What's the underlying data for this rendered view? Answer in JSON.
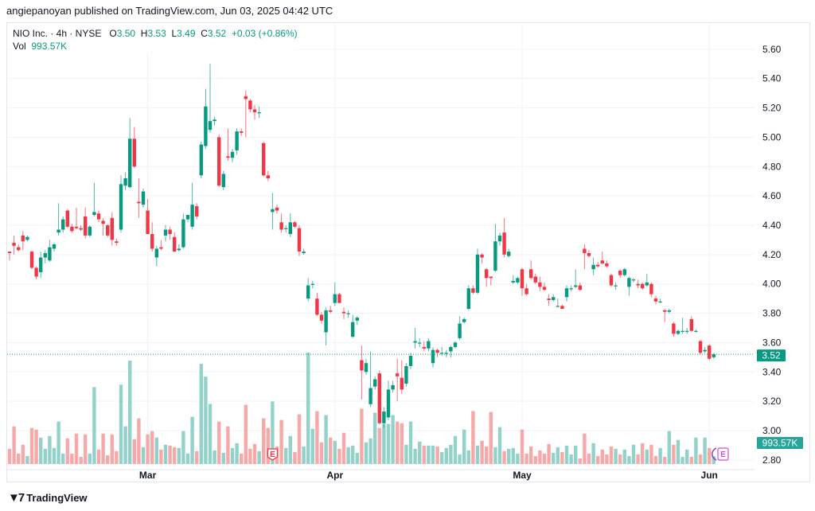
{
  "publisher_line": "angiepanoyan published on TradingView.com, Jun 03, 2025 04:42 UTC",
  "legend": {
    "symbol": "NIO Inc. · 4h · NYSE",
    "o_label": "O",
    "o": "3.50",
    "h_label": "H",
    "h": "3.53",
    "l_label": "L",
    "l": "3.49",
    "c_label": "C",
    "c": "3.52",
    "change": "+0.03 (+0.86%)",
    "vol_label": "Vol",
    "vol": "993.57K"
  },
  "footer": {
    "brand": "TradingView",
    "logo_icon": "tradingview-logo-icon"
  },
  "colors": {
    "up": "#089981",
    "down": "#F23645",
    "vol_up": "#92d2ca",
    "vol_down": "#f7a8a8",
    "grid": "#f0f3fa",
    "earnings_past": "#F23645",
    "earnings_future": "#d24cd9"
  },
  "chart_data": {
    "type": "candlestick",
    "title": "NIO Inc. · 4h · NYSE",
    "ylim": [
      2.8,
      5.65
    ],
    "y_ticks": [
      "5.60",
      "5.40",
      "5.20",
      "5.00",
      "4.80",
      "4.60",
      "4.40",
      "4.20",
      "4.00",
      "3.80",
      "3.60",
      "3.40",
      "3.20",
      "3.00",
      "2.80"
    ],
    "x_ticks": [
      {
        "label": "Mar",
        "index": 31
      },
      {
        "label": "Apr",
        "index": 73
      },
      {
        "label": "May",
        "index": 115
      },
      {
        "label": "Jun",
        "index": 157
      }
    ],
    "last_price": "3.52",
    "last_price_value": 3.52,
    "volume_label": "993.57K",
    "volume_unit": "M",
    "earnings_markers": [
      {
        "label": "E",
        "index": 59,
        "state": "past"
      },
      {
        "label": "E",
        "index": 160,
        "state": "upcoming"
      }
    ],
    "candles_ohlc": [
      [
        4.22,
        4.22,
        4.16,
        4.21
      ],
      [
        4.28,
        4.33,
        4.2,
        4.26
      ],
      [
        4.25,
        4.27,
        4.22,
        4.23
      ],
      [
        4.33,
        4.36,
        4.23,
        4.29
      ],
      [
        4.3,
        4.33,
        4.29,
        4.32
      ],
      [
        4.22,
        4.23,
        4.1,
        4.11
      ],
      [
        4.11,
        4.12,
        4.03,
        4.05
      ],
      [
        4.08,
        4.22,
        4.04,
        4.18
      ],
      [
        4.18,
        4.23,
        4.14,
        4.21
      ],
      [
        4.16,
        4.3,
        4.15,
        4.25
      ],
      [
        4.24,
        4.28,
        4.22,
        4.27
      ],
      [
        4.35,
        4.55,
        4.33,
        4.37
      ],
      [
        4.37,
        4.46,
        4.35,
        4.44
      ],
      [
        4.5,
        4.51,
        4.38,
        4.39
      ],
      [
        4.39,
        4.41,
        4.35,
        4.36
      ],
      [
        4.39,
        4.52,
        4.37,
        4.38
      ],
      [
        4.38,
        4.4,
        4.36,
        4.37
      ],
      [
        4.46,
        4.52,
        4.31,
        4.33
      ],
      [
        4.33,
        4.4,
        4.32,
        4.39
      ],
      [
        4.47,
        4.69,
        4.46,
        4.49
      ],
      [
        4.48,
        4.5,
        4.42,
        4.44
      ],
      [
        4.43,
        4.45,
        4.33,
        4.41
      ],
      [
        4.4,
        4.41,
        4.32,
        4.33
      ],
      [
        4.45,
        4.49,
        4.26,
        4.3
      ],
      [
        4.29,
        4.31,
        4.26,
        4.28
      ],
      [
        4.37,
        4.74,
        4.35,
        4.68
      ],
      [
        4.67,
        4.76,
        4.64,
        4.72
      ],
      [
        4.66,
        5.13,
        4.65,
        4.99
      ],
      [
        4.99,
        5.07,
        4.79,
        4.8
      ],
      [
        4.56,
        4.72,
        4.45,
        4.55
      ],
      [
        4.54,
        4.65,
        4.52,
        4.63
      ],
      [
        4.5,
        4.58,
        4.34,
        4.34
      ],
      [
        4.34,
        4.42,
        4.22,
        4.24
      ],
      [
        4.18,
        4.26,
        4.12,
        4.24
      ],
      [
        4.25,
        4.3,
        4.23,
        4.24
      ],
      [
        4.33,
        4.4,
        4.29,
        4.37
      ],
      [
        4.37,
        4.39,
        4.3,
        4.34
      ],
      [
        4.32,
        4.35,
        4.22,
        4.22
      ],
      [
        4.23,
        4.27,
        4.22,
        4.24
      ],
      [
        4.25,
        4.48,
        4.24,
        4.44
      ],
      [
        4.44,
        4.47,
        4.42,
        4.47
      ],
      [
        4.39,
        4.69,
        4.37,
        4.54
      ],
      [
        4.53,
        4.55,
        4.44,
        4.46
      ],
      [
        4.74,
        4.97,
        4.72,
        4.95
      ],
      [
        4.94,
        5.33,
        4.92,
        5.21
      ],
      [
        5.05,
        5.5,
        5.03,
        5.11
      ],
      [
        5.11,
        5.14,
        5.08,
        5.12
      ],
      [
        5.0,
        5.02,
        4.66,
        4.67
      ],
      [
        4.66,
        4.77,
        4.64,
        4.75
      ],
      [
        4.87,
        5.06,
        4.84,
        4.86
      ],
      [
        4.86,
        4.92,
        4.83,
        4.9
      ],
      [
        4.91,
        5.06,
        4.88,
        5.04
      ],
      [
        5.04,
        5.06,
        5.01,
        5.03
      ],
      [
        5.28,
        5.32,
        5.0,
        5.26
      ],
      [
        5.25,
        5.26,
        5.17,
        5.19
      ],
      [
        5.19,
        5.22,
        5.12,
        5.17
      ],
      [
        5.17,
        5.21,
        5.13,
        5.17
      ],
      [
        4.96,
        4.97,
        4.73,
        4.74
      ],
      [
        4.74,
        4.77,
        4.7,
        4.72
      ],
      [
        4.49,
        4.62,
        4.37,
        4.51
      ],
      [
        4.52,
        4.54,
        4.48,
        4.5
      ],
      [
        4.42,
        4.48,
        4.35,
        4.37
      ],
      [
        4.38,
        4.4,
        4.35,
        4.38
      ],
      [
        4.34,
        4.48,
        4.32,
        4.42
      ],
      [
        4.42,
        4.43,
        4.38,
        4.39
      ],
      [
        4.38,
        4.4,
        4.19,
        4.22
      ],
      [
        4.21,
        4.24,
        4.2,
        4.22
      ],
      [
        3.9,
        4.04,
        3.88,
        3.99
      ],
      [
        4.0,
        4.02,
        3.97,
        4.0
      ],
      [
        3.9,
        3.94,
        3.78,
        3.79
      ],
      [
        3.79,
        3.81,
        3.73,
        3.75
      ],
      [
        3.67,
        3.84,
        3.58,
        3.82
      ],
      [
        3.82,
        3.85,
        3.8,
        3.81
      ],
      [
        3.87,
        4.01,
        3.85,
        3.93
      ],
      [
        3.93,
        3.94,
        3.87,
        3.87
      ],
      [
        3.81,
        3.84,
        3.76,
        3.8
      ],
      [
        3.8,
        3.82,
        3.77,
        3.8
      ],
      [
        3.64,
        3.79,
        3.63,
        3.74
      ],
      [
        3.75,
        3.78,
        3.72,
        3.77
      ],
      [
        3.48,
        3.58,
        3.21,
        3.41
      ],
      [
        3.4,
        3.49,
        3.38,
        3.46
      ],
      [
        3.18,
        3.54,
        3.16,
        3.29
      ],
      [
        3.3,
        3.37,
        3.28,
        3.35
      ],
      [
        3.39,
        3.41,
        3.04,
        3.05
      ],
      [
        3.05,
        3.16,
        3.02,
        3.13
      ],
      [
        3.09,
        3.34,
        3.07,
        3.28
      ],
      [
        3.28,
        3.34,
        3.26,
        3.31
      ],
      [
        3.39,
        3.49,
        3.2,
        3.37
      ],
      [
        3.36,
        3.48,
        3.25,
        3.28
      ],
      [
        3.32,
        3.46,
        3.3,
        3.44
      ],
      [
        3.44,
        3.53,
        3.42,
        3.51
      ],
      [
        3.6,
        3.7,
        3.56,
        3.61
      ],
      [
        3.6,
        3.63,
        3.57,
        3.6
      ],
      [
        3.57,
        3.61,
        3.54,
        3.56
      ],
      [
        3.56,
        3.63,
        3.54,
        3.61
      ],
      [
        3.46,
        3.57,
        3.43,
        3.55
      ],
      [
        3.55,
        3.56,
        3.5,
        3.53
      ],
      [
        3.53,
        3.57,
        3.51,
        3.53
      ],
      [
        3.53,
        3.55,
        3.5,
        3.53
      ],
      [
        3.54,
        3.58,
        3.5,
        3.57
      ],
      [
        3.57,
        3.61,
        3.56,
        3.6
      ],
      [
        3.63,
        3.78,
        3.62,
        3.73
      ],
      [
        3.74,
        3.77,
        3.73,
        3.76
      ],
      [
        3.83,
        3.99,
        3.82,
        3.97
      ],
      [
        3.97,
        3.99,
        3.93,
        3.94
      ],
      [
        3.94,
        4.24,
        3.93,
        4.2
      ],
      [
        4.2,
        4.21,
        4.14,
        4.18
      ],
      [
        4.1,
        4.11,
        3.98,
        4.04
      ],
      [
        4.05,
        4.05,
        3.99,
        4.04
      ],
      [
        4.09,
        4.41,
        4.08,
        4.29
      ],
      [
        4.29,
        4.35,
        4.26,
        4.33
      ],
      [
        4.35,
        4.45,
        4.18,
        4.2
      ],
      [
        4.19,
        4.24,
        4.18,
        4.22
      ],
      [
        4.01,
        4.06,
        4.0,
        4.02
      ],
      [
        4.01,
        4.05,
        4.0,
        4.04
      ],
      [
        4.1,
        4.11,
        3.92,
        3.97
      ],
      [
        3.97,
        4.0,
        3.92,
        3.93
      ],
      [
        4.1,
        4.16,
        4.03,
        4.04
      ],
      [
        4.05,
        4.07,
        4.0,
        4.01
      ],
      [
        4.01,
        4.05,
        3.95,
        3.98
      ],
      [
        3.98,
        4.01,
        3.95,
        3.96
      ],
      [
        3.9,
        3.93,
        3.85,
        3.89
      ],
      [
        3.89,
        3.93,
        3.88,
        3.91
      ],
      [
        3.85,
        3.9,
        3.84,
        3.85
      ],
      [
        3.85,
        3.86,
        3.83,
        3.83
      ],
      [
        3.91,
        3.99,
        3.88,
        3.97
      ],
      [
        3.97,
        3.99,
        3.95,
        3.97
      ],
      [
        3.98,
        4.1,
        3.97,
        3.99
      ],
      [
        3.99,
        4.01,
        3.95,
        3.96
      ],
      [
        4.24,
        4.27,
        4.1,
        4.21
      ],
      [
        4.21,
        4.23,
        4.18,
        4.19
      ],
      [
        4.1,
        4.18,
        4.06,
        4.13
      ],
      [
        4.13,
        4.15,
        4.11,
        4.12
      ],
      [
        4.16,
        4.22,
        4.13,
        4.14
      ],
      [
        4.14,
        4.16,
        4.11,
        4.12
      ],
      [
        4.06,
        4.07,
        3.98,
        3.99
      ],
      [
        3.99,
        4.01,
        3.96,
        3.99
      ],
      [
        4.09,
        4.1,
        4.04,
        4.06
      ],
      [
        4.06,
        4.11,
        4.05,
        4.1
      ],
      [
        3.98,
        4.05,
        3.92,
        4.04
      ],
      [
        4.03,
        4.04,
        4.01,
        4.03
      ],
      [
        4.0,
        4.03,
        3.97,
        3.99
      ],
      [
        4.0,
        4.01,
        3.96,
        3.97
      ],
      [
        3.99,
        4.07,
        3.98,
        4.01
      ],
      [
        4.0,
        4.01,
        3.91,
        3.93
      ],
      [
        3.9,
        3.92,
        3.86,
        3.88
      ],
      [
        3.88,
        3.9,
        3.87,
        3.88
      ],
      [
        3.82,
        3.83,
        3.74,
        3.81
      ],
      [
        3.81,
        3.83,
        3.8,
        3.82
      ],
      [
        3.73,
        3.74,
        3.64,
        3.66
      ],
      [
        3.66,
        3.69,
        3.65,
        3.68
      ],
      [
        3.68,
        3.77,
        3.66,
        3.68
      ],
      [
        3.68,
        3.7,
        3.66,
        3.68
      ],
      [
        3.76,
        3.78,
        3.67,
        3.68
      ],
      [
        3.68,
        3.69,
        3.67,
        3.68
      ],
      [
        3.61,
        3.62,
        3.52,
        3.53
      ],
      [
        3.54,
        3.57,
        3.53,
        3.55
      ],
      [
        3.58,
        3.59,
        3.48,
        3.49
      ],
      [
        3.5,
        3.53,
        3.49,
        3.52
      ]
    ],
    "volumes_m": [
      1.9,
      4.7,
      1.3,
      2.4,
      1.0,
      4.5,
      4.3,
      3.3,
      1.9,
      3.5,
      2.0,
      5.3,
      1.3,
      3.2,
      1.3,
      3.8,
      0.9,
      3.7,
      1.3,
      9.6,
      1.8,
      3.8,
      1.1,
      3.7,
      1.6,
      9.9,
      4.7,
      12.9,
      3.1,
      5.7,
      2.1,
      3.7,
      4.1,
      3.3,
      1.8,
      2.4,
      2.3,
      2.1,
      2.0,
      4.1,
      1.3,
      5.9,
      1.6,
      12.5,
      10.9,
      7.5,
      1.7,
      5.3,
      1.4,
      4.7,
      2.0,
      2.6,
      1.3,
      7.4,
      1.9,
      2.5,
      1.6,
      5.7,
      4.5,
      7.8,
      2.2,
      5.5,
      2.0,
      3.5,
      1.5,
      6.2,
      2.2,
      13.9,
      4.4,
      6.6,
      2.7,
      6.1,
      3.3,
      2.9,
      1.9,
      3.9,
      2.1,
      2.3,
      1.4,
      6.9,
      2.7,
      3.2,
      6.4,
      4.5,
      5.0,
      5.0,
      6.1,
      5.3,
      5.1,
      2.4,
      5.3,
      1.9,
      2.8,
      2.3,
      2.3,
      2.3,
      2.2,
      1.5,
      2.0,
      2.4,
      3.5,
      1.2,
      4.3,
      1.7,
      6.6,
      2.3,
      2.9,
      2.2,
      6.5,
      2.1,
      4.6,
      1.6,
      1.9,
      2.0,
      1.3,
      4.3,
      1.3,
      2.2,
      1.0,
      1.7,
      1.3,
      2.5,
      1.4,
      2.1,
      1.5,
      2.3,
      1.2,
      2.3,
      0.7,
      3.8,
      1.3,
      2.6,
      1.0,
      1.8,
      1.2,
      2.2,
      1.9,
      1.2,
      1.8,
      1.0,
      2.4,
      1.2,
      2.6,
      1.8,
      2.4,
      1.0,
      2.0,
      0.9,
      4.1,
      2.4,
      3.0,
      0.9,
      1.8,
      0.9,
      3.3,
      1.2,
      3.3,
      2.0,
      0.99
    ]
  }
}
